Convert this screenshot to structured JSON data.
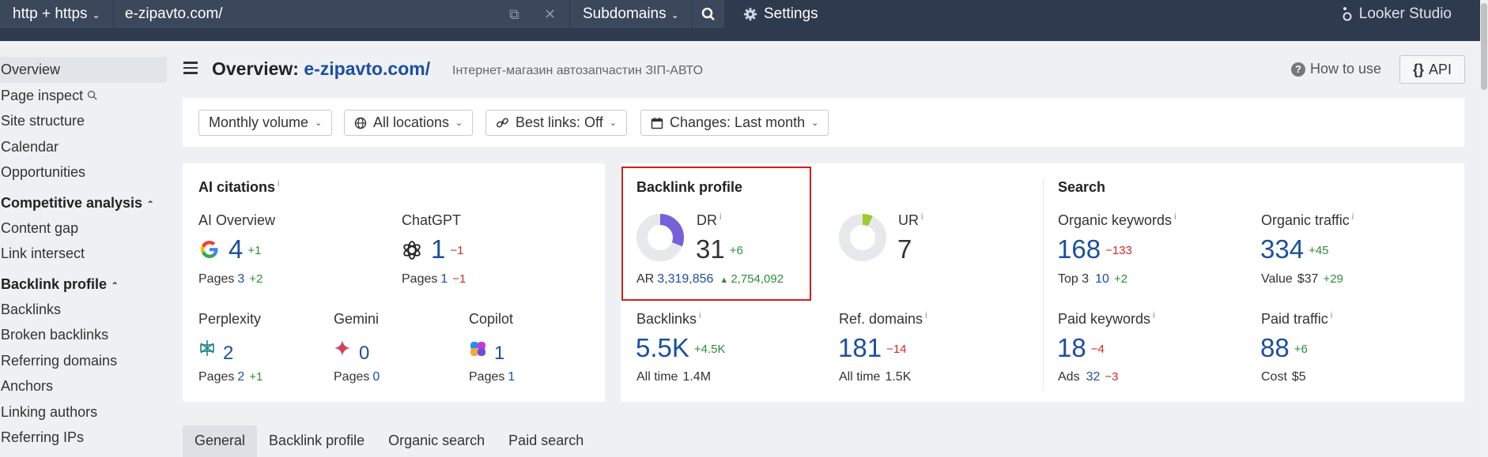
{
  "topbar": {
    "protocol": "http + https",
    "url": "e-zipavto.com/",
    "subdomains": "Subdomains",
    "settings": "Settings",
    "looker": "Looker Studio"
  },
  "sidebar": {
    "items_top": [
      "Overview",
      "Page inspect",
      "Site structure",
      "Calendar",
      "Opportunities"
    ],
    "competitive_head": "Competitive analysis",
    "competitive_items": [
      "Content gap",
      "Link intersect"
    ],
    "backlink_head": "Backlink profile",
    "backlink_items": [
      "Backlinks",
      "Broken backlinks",
      "Referring domains",
      "Anchors",
      "Linking authors",
      "Referring IPs"
    ]
  },
  "header": {
    "title_prefix": "Overview:",
    "title_domain": "e-zipavto.com/",
    "subtitle": "Інтернет-магазин автозапчастин ЗІП-АВТО",
    "how_to_use": "How to use",
    "api": "API"
  },
  "filters": {
    "volume": "Monthly volume",
    "locations": "All locations",
    "best_links": "Best links: Off",
    "changes": "Changes: Last month"
  },
  "ai": {
    "title": "AI citations",
    "overview": {
      "label": "AI Overview",
      "value": "4",
      "delta": "+1",
      "pages_label": "Pages",
      "pages": "3",
      "pages_delta": "+2"
    },
    "chatgpt": {
      "label": "ChatGPT",
      "value": "1",
      "delta": "−1",
      "pages_label": "Pages",
      "pages": "1",
      "pages_delta": "−1"
    },
    "perplexity": {
      "label": "Perplexity",
      "value": "2",
      "pages_label": "Pages",
      "pages": "2",
      "pages_delta": "+1"
    },
    "gemini": {
      "label": "Gemini",
      "value": "0",
      "pages_label": "Pages",
      "pages": "0"
    },
    "copilot": {
      "label": "Copilot",
      "value": "1",
      "pages_label": "Pages",
      "pages": "1"
    }
  },
  "backlink": {
    "title": "Backlink profile",
    "dr": {
      "label": "DR",
      "value": "31",
      "delta": "+6",
      "fill_fraction": 0.31
    },
    "ar": {
      "label": "AR",
      "value": "3,319,856",
      "delta": "2,754,092"
    },
    "ur": {
      "label": "UR",
      "value": "7",
      "fill_fraction": 0.07
    },
    "backlinks": {
      "label": "Backlinks",
      "value": "5.5K",
      "delta": "+4.5K",
      "alltime_label": "All time",
      "alltime": "1.4M"
    },
    "refdomains": {
      "label": "Ref. domains",
      "value": "181",
      "delta": "−14",
      "alltime_label": "All time",
      "alltime": "1.5K"
    }
  },
  "search": {
    "title": "Search",
    "org_kw": {
      "label": "Organic keywords",
      "value": "168",
      "delta": "−133",
      "sub_label": "Top 3",
      "sub_value": "10",
      "sub_delta": "+2"
    },
    "org_traffic": {
      "label": "Organic traffic",
      "value": "334",
      "delta": "+45",
      "sub_label": "Value",
      "sub_value": "$37",
      "sub_delta": "+29"
    },
    "paid_kw": {
      "label": "Paid keywords",
      "value": "18",
      "delta": "−4",
      "sub_label": "Ads",
      "sub_value": "32",
      "sub_delta": "−3"
    },
    "paid_traffic": {
      "label": "Paid traffic",
      "value": "88",
      "delta": "+6",
      "sub_label": "Cost",
      "sub_value": "$5"
    }
  },
  "tabs": [
    "General",
    "Backlink profile",
    "Organic search",
    "Paid search"
  ],
  "colors": {
    "accent": "#1c4fa0",
    "positive": "#2e8b3a",
    "negative": "#cf2a2a",
    "dr_fill": "#7661d9",
    "ur_fill": "#9ccc2e",
    "highlight": "#d41c1c",
    "topbar": "#2e3a4d"
  }
}
